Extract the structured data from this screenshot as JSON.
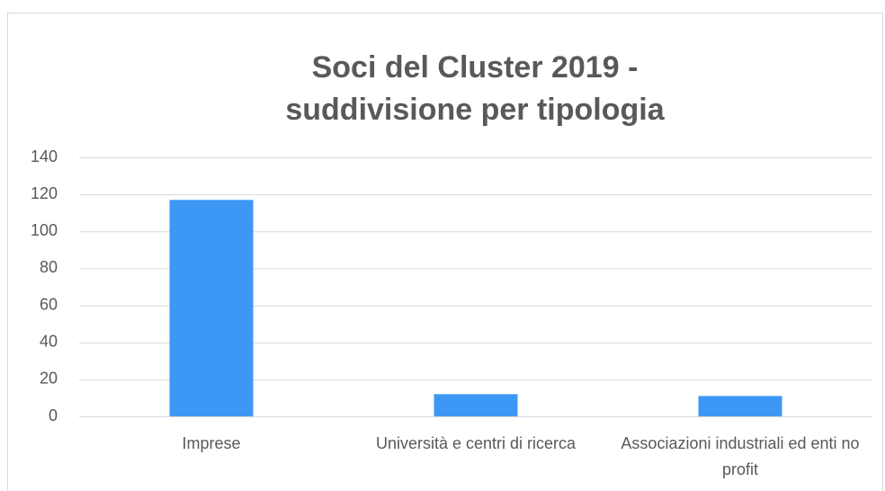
{
  "chart_data": {
    "type": "bar",
    "title": [
      "Soci del Cluster 2019 -",
      "suddivisione per tipologia"
    ],
    "categories": [
      "Imprese",
      "Università e centri di ricerca",
      "Associazioni industriali ed enti no profit"
    ],
    "values": [
      117,
      12,
      11
    ],
    "color": "#3d97f5",
    "ylim": [
      0,
      140
    ],
    "yticks": [
      0,
      20,
      40,
      60,
      80,
      100,
      120,
      140
    ],
    "grid": true
  }
}
